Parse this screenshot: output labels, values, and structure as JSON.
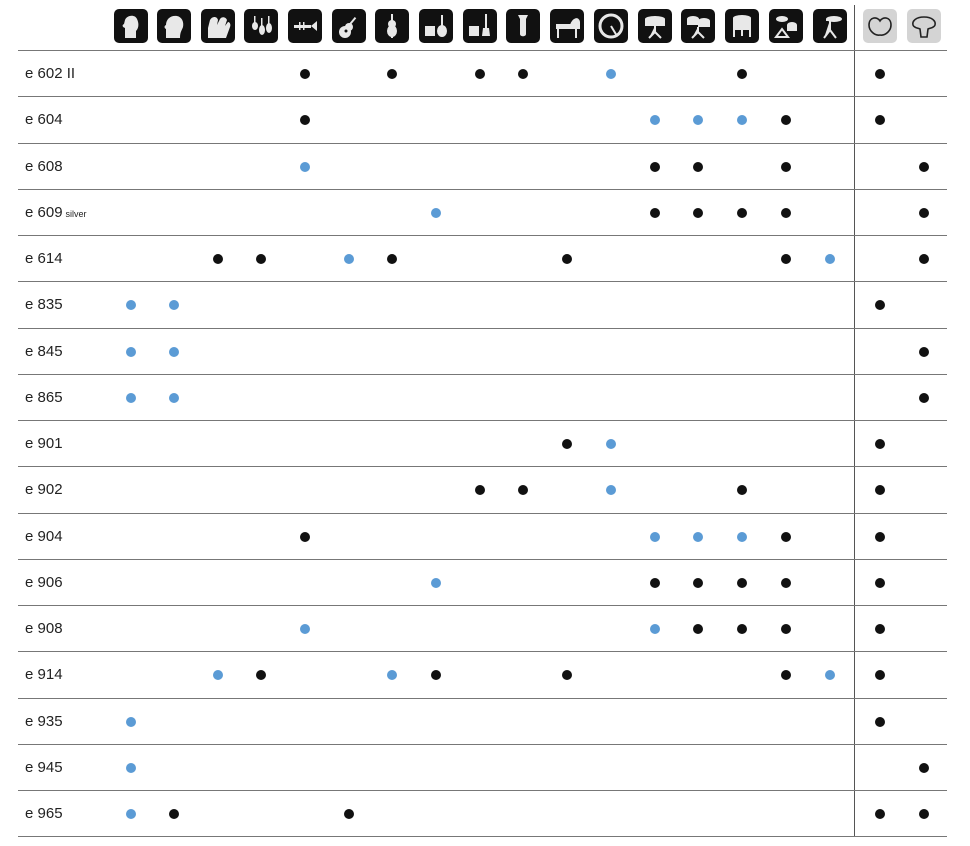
{
  "colors": {
    "black": "#111111",
    "blue": "#5b9bd5",
    "pattern_bg": "#d4d4d4"
  },
  "columns": [
    {
      "icon": "female-vocals-icon"
    },
    {
      "icon": "male-vocals-icon"
    },
    {
      "icon": "choir-icon"
    },
    {
      "icon": "string-ensemble-icon"
    },
    {
      "icon": "trumpet-icon"
    },
    {
      "icon": "acoustic-guitar-icon"
    },
    {
      "icon": "violin-icon"
    },
    {
      "icon": "guitar-amp-icon"
    },
    {
      "icon": "bass-amp-icon"
    },
    {
      "icon": "tuba-icon"
    },
    {
      "icon": "grand-piano-icon"
    },
    {
      "icon": "bass-drum-icon"
    },
    {
      "icon": "snare-drum-icon"
    },
    {
      "icon": "tom-toms-icon"
    },
    {
      "icon": "floor-tom-icon"
    },
    {
      "icon": "percussion-icon"
    },
    {
      "icon": "cymbal-icon"
    },
    {
      "icon": "cardioid-pattern-icon"
    },
    {
      "icon": "supercardioid-pattern-icon"
    }
  ],
  "rows": [
    {
      "model": "e 602 II",
      "suffix": "",
      "marks": {
        "4": "black",
        "6": "black",
        "8": "black",
        "9": "black",
        "11": "blue",
        "14": "black",
        "17": "black"
      }
    },
    {
      "model": "e 604",
      "suffix": "",
      "marks": {
        "4": "black",
        "12": "blue",
        "13": "blue",
        "14": "blue",
        "15": "black",
        "17": "black"
      }
    },
    {
      "model": "e 608",
      "suffix": "",
      "marks": {
        "4": "blue",
        "12": "black",
        "13": "black",
        "15": "black",
        "18": "black"
      }
    },
    {
      "model": "e 609",
      "suffix": "silver",
      "marks": {
        "7": "blue",
        "12": "black",
        "13": "black",
        "14": "black",
        "15": "black",
        "18": "black"
      }
    },
    {
      "model": "e 614",
      "suffix": "",
      "marks": {
        "2": "black",
        "3": "black",
        "5": "blue",
        "6": "black",
        "10": "black",
        "15": "black",
        "16": "blue",
        "18": "black"
      }
    },
    {
      "model": "e 835",
      "suffix": "",
      "marks": {
        "0": "blue",
        "1": "blue",
        "17": "black"
      }
    },
    {
      "model": "e 845",
      "suffix": "",
      "marks": {
        "0": "blue",
        "1": "blue",
        "18": "black"
      }
    },
    {
      "model": "e 865",
      "suffix": "",
      "marks": {
        "0": "blue",
        "1": "blue",
        "18": "black"
      }
    },
    {
      "model": "e 901",
      "suffix": "",
      "marks": {
        "10": "black",
        "11": "blue",
        "17": "black"
      }
    },
    {
      "model": "e 902",
      "suffix": "",
      "marks": {
        "8": "black",
        "9": "black",
        "11": "blue",
        "14": "black",
        "17": "black"
      }
    },
    {
      "model": "e 904",
      "suffix": "",
      "marks": {
        "4": "black",
        "12": "blue",
        "13": "blue",
        "14": "blue",
        "15": "black",
        "17": "black"
      }
    },
    {
      "model": "e 906",
      "suffix": "",
      "marks": {
        "7": "blue",
        "12": "black",
        "13": "black",
        "14": "black",
        "15": "black",
        "17": "black"
      }
    },
    {
      "model": "e 908",
      "suffix": "",
      "marks": {
        "4": "blue",
        "12": "blue",
        "13": "black",
        "14": "black",
        "15": "black",
        "17": "black"
      }
    },
    {
      "model": "e 914",
      "suffix": "",
      "marks": {
        "2": "blue",
        "3": "black",
        "6": "blue",
        "7": "black",
        "10": "black",
        "15": "black",
        "16": "blue",
        "17": "black"
      }
    },
    {
      "model": "e 935",
      "suffix": "",
      "marks": {
        "0": "blue",
        "17": "black"
      }
    },
    {
      "model": "e 945",
      "suffix": "",
      "marks": {
        "0": "blue",
        "18": "black"
      }
    },
    {
      "model": "e 965",
      "suffix": "",
      "marks": {
        "0": "blue",
        "1": "black",
        "5": "black",
        "17": "black",
        "18": "black"
      }
    }
  ]
}
